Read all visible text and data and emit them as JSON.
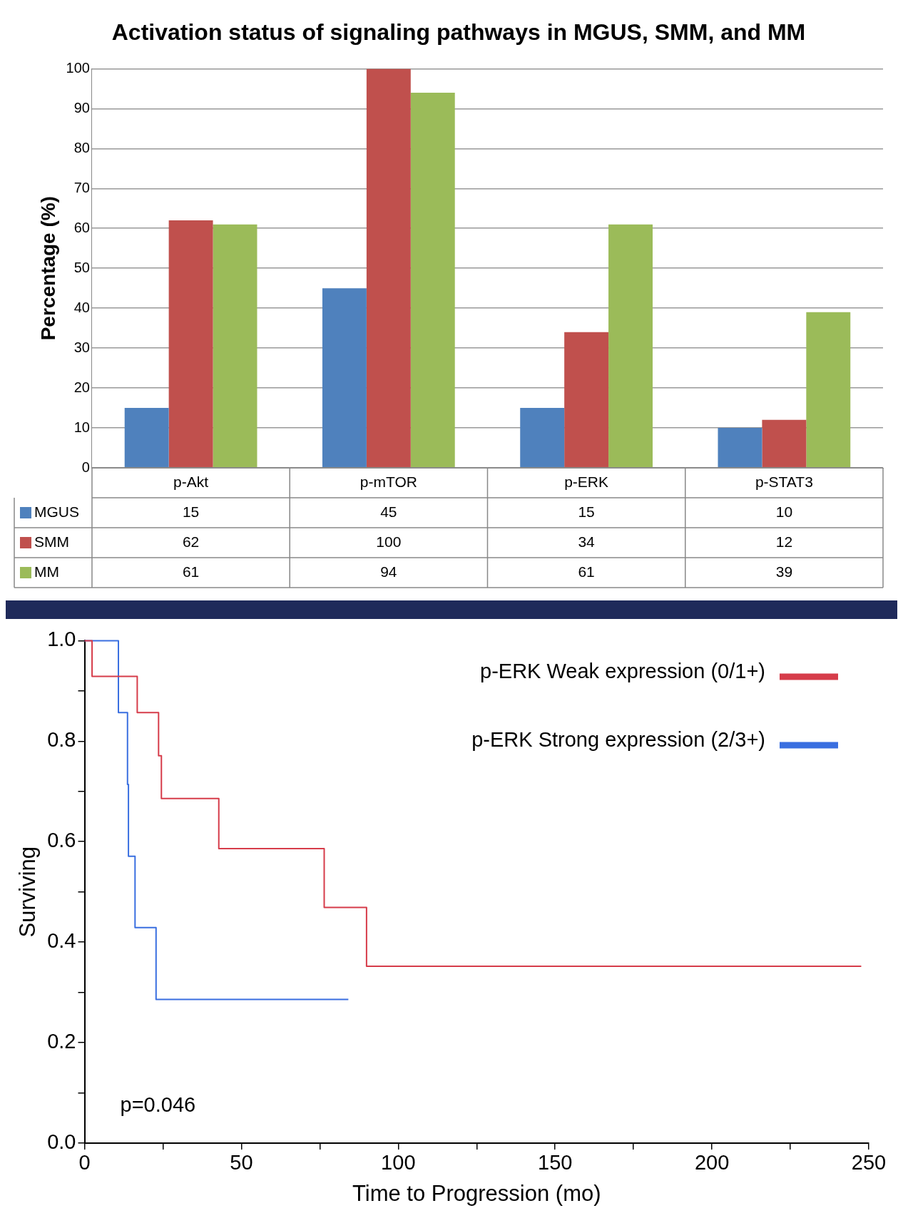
{
  "chart_data": [
    {
      "type": "bar",
      "title": "Activation status of signaling pathways in MGUS, SMM, and MM",
      "ylabel": "Percentage (%)",
      "categories": [
        "p-Akt",
        "p-mTOR",
        "p-ERK",
        "p-STAT3"
      ],
      "series": [
        {
          "name": "MGUS",
          "color": "#4f81bd",
          "values": [
            15,
            45,
            15,
            10
          ]
        },
        {
          "name": "SMM",
          "color": "#c0504d",
          "values": [
            62,
            100,
            34,
            12
          ]
        },
        {
          "name": "MM",
          "color": "#9bbb59",
          "values": [
            61,
            94,
            61,
            39
          ]
        }
      ],
      "ylim": [
        0,
        100
      ],
      "yticks": [
        0,
        10,
        20,
        30,
        40,
        50,
        60,
        70,
        80,
        90,
        100
      ],
      "grid": "y",
      "legend": "bottom",
      "data_labels": true
    },
    {
      "type": "step",
      "xlabel": "Time to Progression (mo)",
      "ylabel": "Surviving",
      "xlim": [
        0,
        250
      ],
      "xticks": [
        0,
        {
          "value": 25,
          "label": null
        },
        50,
        {
          "value": 75,
          "label": null
        },
        100,
        {
          "value": 125,
          "label": null
        },
        150,
        {
          "value": 175,
          "label": null
        },
        200,
        {
          "value": 225,
          "label": null
        },
        250
      ],
      "ylim": [
        0,
        1
      ],
      "yticks": [
        {
          "value": 0,
          "label": "0.0"
        },
        {
          "value": 0.1,
          "label": null
        },
        {
          "value": 0.2,
          "label": "0.2"
        },
        {
          "value": 0.3,
          "label": null
        },
        {
          "value": 0.4,
          "label": "0.4"
        },
        {
          "value": 0.5,
          "label": null
        },
        {
          "value": 0.6,
          "label": "0.6"
        },
        {
          "value": 0.7,
          "label": null
        },
        {
          "value": 0.8,
          "label": "0.8"
        },
        {
          "value": 0.9,
          "label": null
        },
        {
          "value": 1,
          "label": "1.0"
        }
      ],
      "series": [
        {
          "name": "p-ERK Weak expression (0/1+)",
          "color": "#d63c4a",
          "x": [
            0,
            2.4,
            16.8,
            23.6,
            24.5,
            42.8,
            76.4,
            89.9,
            247.6
          ],
          "values": [
            1,
            0.929,
            0.857,
            0.771,
            0.686,
            0.586,
            0.469,
            0.352,
            0.352
          ]
        },
        {
          "name": "p-ERK Strong expression (2/3+)",
          "color": "#3a6fe0",
          "x": [
            0,
            10.8,
            13.7,
            14,
            16.1,
            22.8,
            84.1
          ],
          "values": [
            1,
            0.857,
            0.714,
            0.571,
            0.429,
            0.286,
            0.286
          ]
        }
      ],
      "legend": "top right",
      "annotations": [
        "p=0.046"
      ]
    }
  ]
}
